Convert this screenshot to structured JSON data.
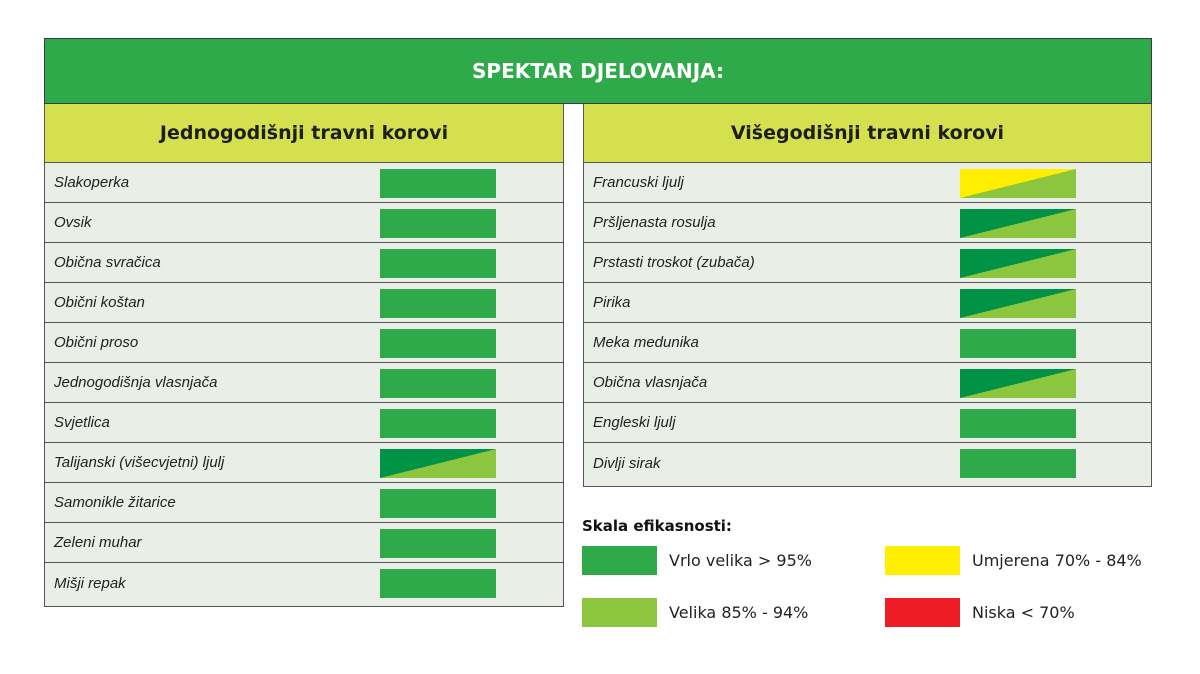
{
  "banner": {
    "title": "SPEKTAR DJELOVANJA:"
  },
  "colors": {
    "vrlo_velika": "#2eaa4a",
    "velika": "#8cc63e",
    "umjerena": "#ffee00",
    "niska": "#ee1c25",
    "split_dark": "#009245"
  },
  "left": {
    "heading": "Jednogodišnji travni korovi",
    "rows": [
      {
        "name": "Slakoperka",
        "rating": "vrlo_velika"
      },
      {
        "name": "Ovsik",
        "rating": "vrlo_velika"
      },
      {
        "name": "Obična svračica",
        "rating": "vrlo_velika"
      },
      {
        "name": "Obični koštan",
        "rating": "vrlo_velika"
      },
      {
        "name": "Obični proso",
        "rating": "vrlo_velika"
      },
      {
        "name": "Jednogodišnja vlasnjača",
        "rating": "vrlo_velika"
      },
      {
        "name": "Svjetlica",
        "rating": "vrlo_velika"
      },
      {
        "name": "Talijanski (višecvjetni) ljulj",
        "rating": "split_vrlo_velika_velika"
      },
      {
        "name": "Samonikle žitarice",
        "rating": "vrlo_velika"
      },
      {
        "name": "Zeleni muhar",
        "rating": "vrlo_velika"
      },
      {
        "name": "Mišji repak",
        "rating": "vrlo_velika"
      }
    ]
  },
  "right": {
    "heading": "Višegodišnji travni korovi",
    "rows": [
      {
        "name": "Francuski ljulj",
        "rating": "split_umjerena_velika"
      },
      {
        "name": "Pršljenasta rosulja",
        "rating": "split_vrlo_velika_velika"
      },
      {
        "name": "Prstasti troskot (zubača)",
        "rating": "split_vrlo_velika_velika"
      },
      {
        "name": "Pirika",
        "rating": "split_vrlo_velika_velika"
      },
      {
        "name": "Meka medunika",
        "rating": "vrlo_velika"
      },
      {
        "name": "Obična vlasnjača",
        "rating": "split_vrlo_velika_velika"
      },
      {
        "name": "Engleski ljulj",
        "rating": "vrlo_velika"
      },
      {
        "name": "Divlji sirak",
        "rating": "vrlo_velika"
      }
    ]
  },
  "legend": {
    "title": "Skala efikasnosti:",
    "items": [
      {
        "key": "vrlo_velika",
        "label": "Vrlo velika  > 95%"
      },
      {
        "key": "velika",
        "label": "Velika 85% - 94%"
      },
      {
        "key": "umjerena",
        "label": "Umjerena 70% - 84%"
      },
      {
        "key": "niska",
        "label": "Niska < 70%"
      }
    ]
  }
}
